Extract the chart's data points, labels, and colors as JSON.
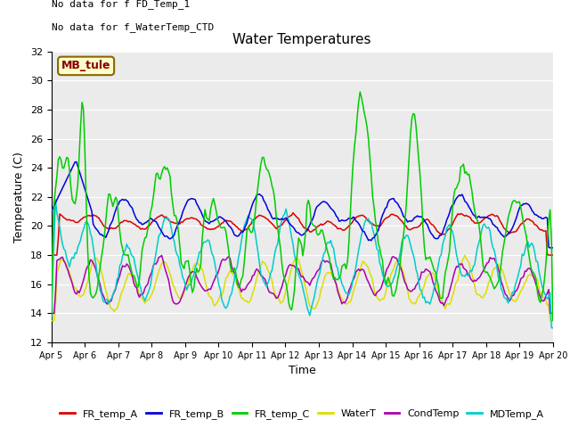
{
  "title": "Water Temperatures",
  "xlabel": "Time",
  "ylabel": "Temperature (C)",
  "ylim": [
    12,
    32
  ],
  "yticks": [
    12,
    14,
    16,
    18,
    20,
    22,
    24,
    26,
    28,
    30,
    32
  ],
  "xtick_labels": [
    "Apr 5",
    "Apr 6",
    "Apr 7",
    "Apr 8",
    "Apr 9",
    "Apr 10",
    "Apr 11",
    "Apr 12",
    "Apr 13",
    "Apr 14",
    "Apr 15",
    "Apr 16",
    "Apr 17",
    "Apr 18",
    "Apr 19",
    "Apr 20"
  ],
  "annotation1": "No data for f FD_Temp_1",
  "annotation2": "No data for f_WaterTemp_CTD",
  "mb_label": "MB_tule",
  "bg_color": "#ebebeb",
  "series_colors": {
    "FR_temp_A": "#dd0000",
    "FR_temp_B": "#0000dd",
    "FR_temp_C": "#00cc00",
    "WaterT": "#dddd00",
    "CondTemp": "#aa00aa",
    "MDTemp_A": "#00cccc"
  }
}
